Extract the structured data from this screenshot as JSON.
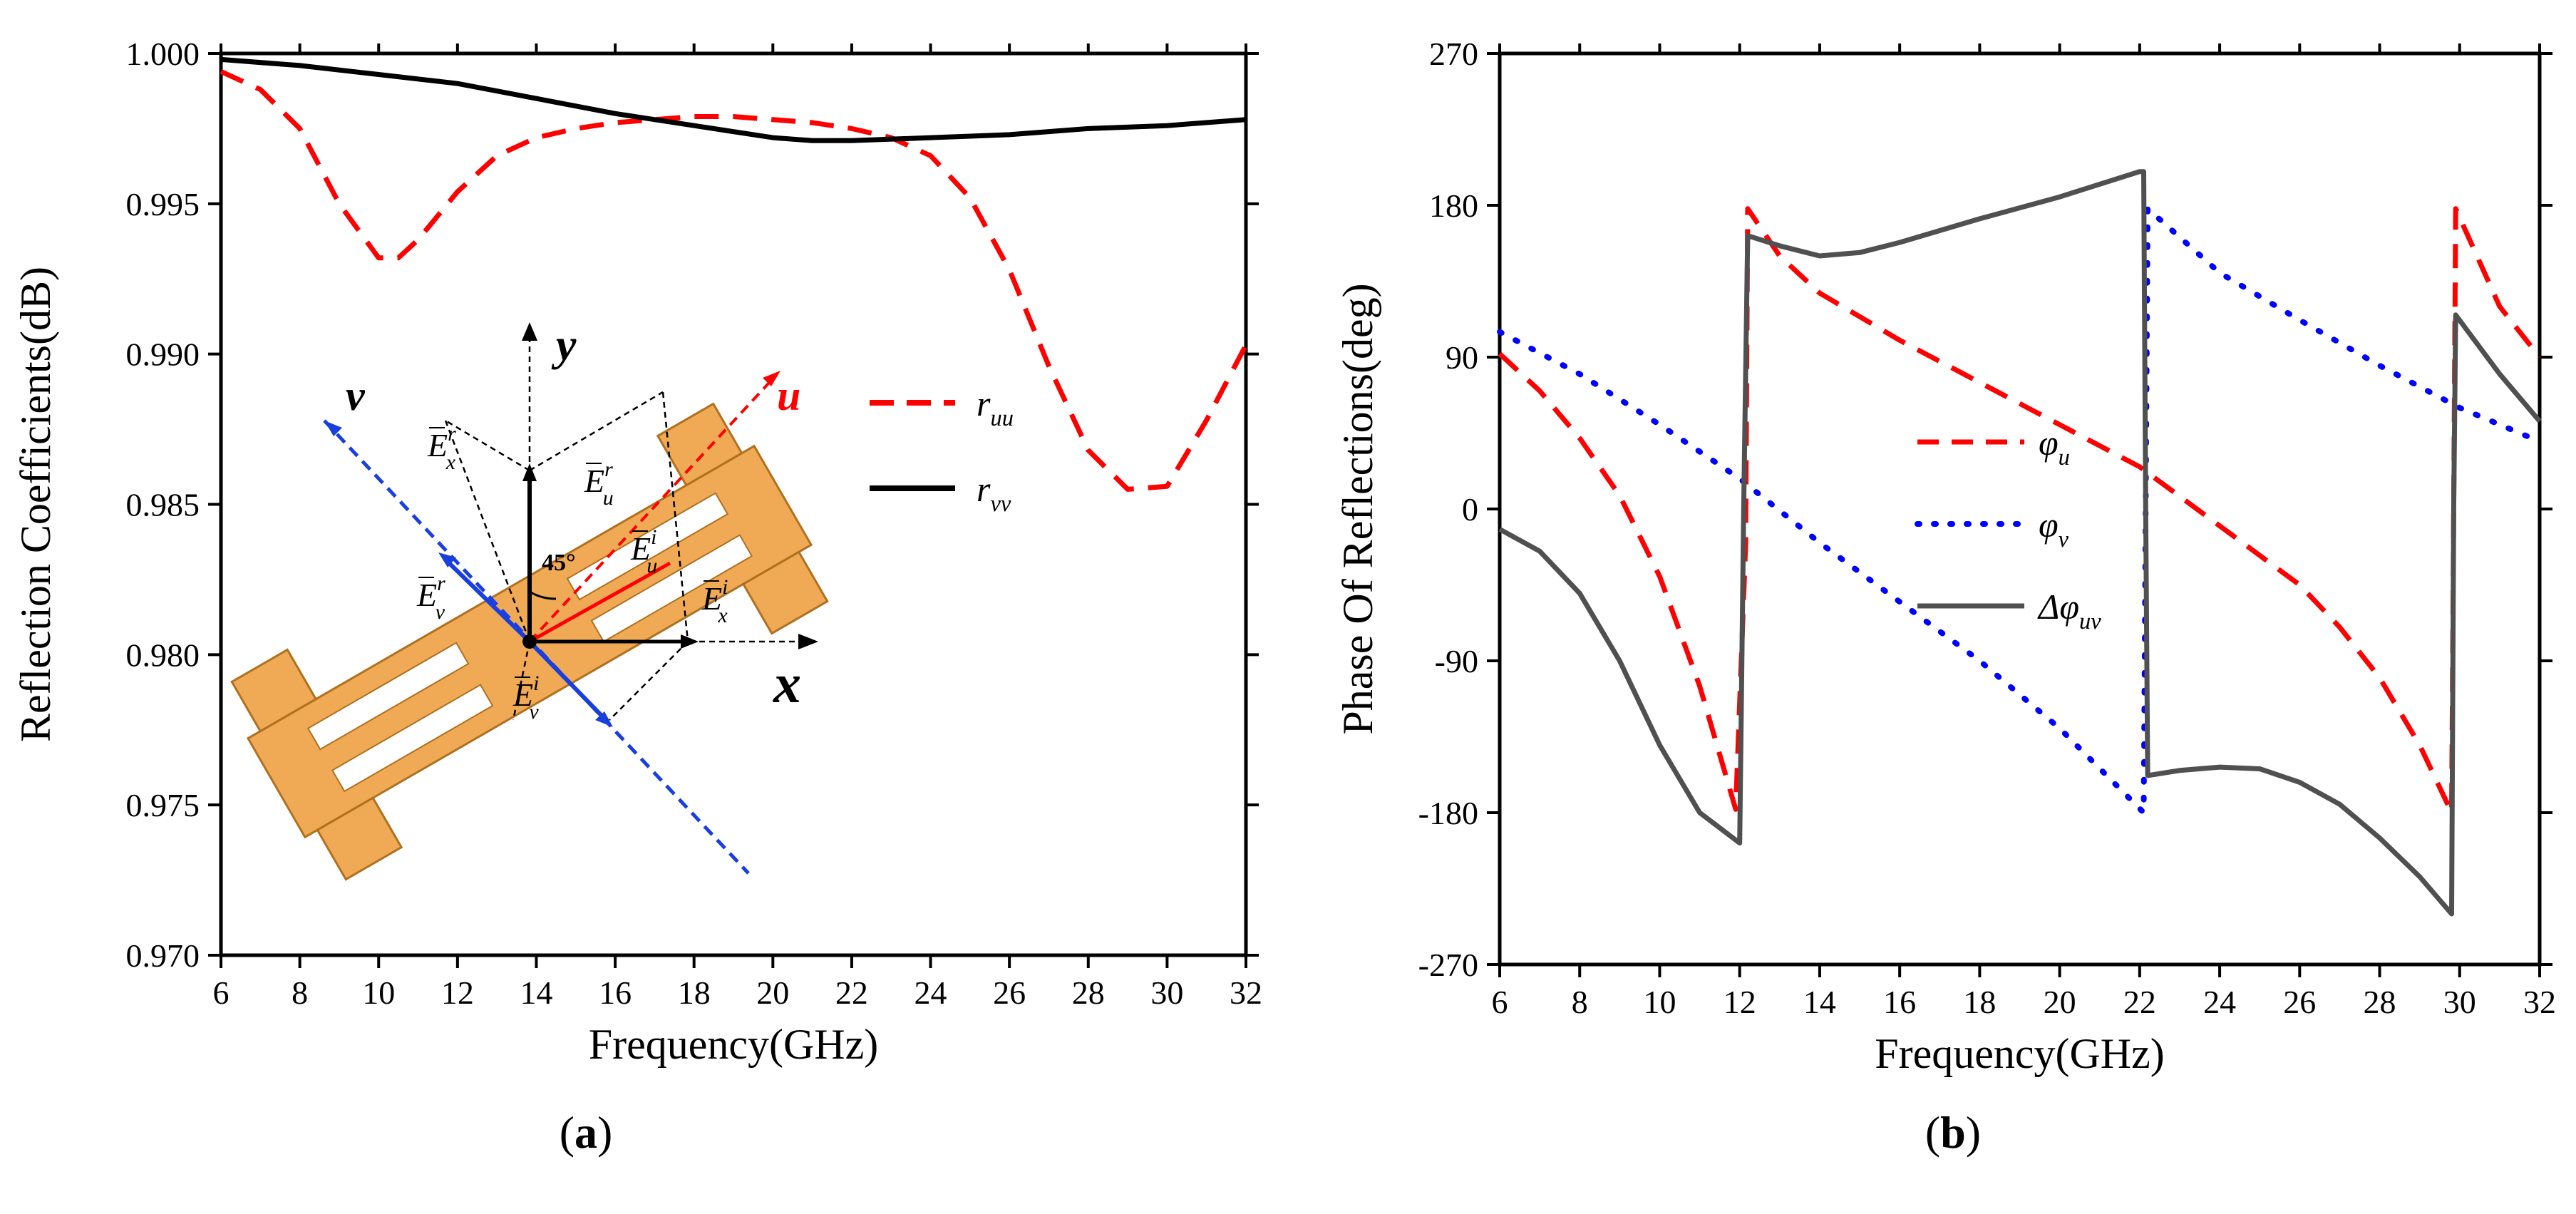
{
  "chart_data": [
    {
      "panel": "(a)",
      "type": "line",
      "ylabel": "Reflection Coefficients(dB)",
      "xlabel": "Frequency(GHz)",
      "xlim": [
        6,
        32
      ],
      "ylim": [
        0.97,
        1.0
      ],
      "xticks": [
        "6",
        "8",
        "10",
        "12",
        "14",
        "16",
        "18",
        "20",
        "22",
        "24",
        "26",
        "28",
        "30",
        "32"
      ],
      "yticks": [
        "0.970",
        "0.975",
        "0.980",
        "0.985",
        "0.990",
        "0.995",
        "1.000"
      ],
      "legend_position": "right",
      "series": [
        {
          "name": "r_uu",
          "name_main": "r",
          "name_sub": "uu",
          "color": "#ff0000",
          "style": "dashed",
          "points": [
            [
              6,
              0.9994
            ],
            [
              7,
              0.9988
            ],
            [
              8,
              0.9975
            ],
            [
              9,
              0.995
            ],
            [
              10,
              0.9932
            ],
            [
              10.5,
              0.9932
            ],
            [
              11,
              0.9938
            ],
            [
              12,
              0.9954
            ],
            [
              13,
              0.9966
            ],
            [
              14,
              0.9972
            ],
            [
              15,
              0.9975
            ],
            [
              16,
              0.9977
            ],
            [
              17,
              0.9978
            ],
            [
              18,
              0.9979
            ],
            [
              19,
              0.9979
            ],
            [
              20,
              0.9978
            ],
            [
              21,
              0.9977
            ],
            [
              22,
              0.9975
            ],
            [
              23,
              0.9972
            ],
            [
              24,
              0.9966
            ],
            [
              25,
              0.9952
            ],
            [
              26,
              0.9928
            ],
            [
              27,
              0.9896
            ],
            [
              28,
              0.9868
            ],
            [
              29,
              0.9855
            ],
            [
              30,
              0.9856
            ],
            [
              31,
              0.9878
            ],
            [
              32,
              0.9903
            ]
          ]
        },
        {
          "name": "r_vv",
          "name_main": "r",
          "name_sub": "vv",
          "color": "#000000",
          "style": "solid",
          "points": [
            [
              6,
              0.9998
            ],
            [
              8,
              0.9996
            ],
            [
              10,
              0.9993
            ],
            [
              12,
              0.999
            ],
            [
              14,
              0.9985
            ],
            [
              16,
              0.998
            ],
            [
              18,
              0.9976
            ],
            [
              20,
              0.9972
            ],
            [
              21,
              0.9971
            ],
            [
              22,
              0.9971
            ],
            [
              24,
              0.9972
            ],
            [
              26,
              0.9973
            ],
            [
              28,
              0.9975
            ],
            [
              30,
              0.9976
            ],
            [
              32,
              0.9978
            ]
          ]
        }
      ],
      "inset": {
        "labels": {
          "x": "x",
          "y": "y",
          "u": "u",
          "v": "v",
          "angle": "45°"
        },
        "field_labels": {
          "exr": {
            "main": "E",
            "sub": "x",
            "sup": "r"
          },
          "eur": {
            "main": "E",
            "sub": "u",
            "sup": "r"
          },
          "eui": {
            "main": "E",
            "sub": "u",
            "sup": "i"
          },
          "exi": {
            "main": "E",
            "sub": "x",
            "sup": "i"
          },
          "evr": {
            "main": "E",
            "sub": "v",
            "sup": "r"
          },
          "evi": {
            "main": "E",
            "sub": "v",
            "sup": "i"
          }
        },
        "colors": {
          "patch": "#f0aa55",
          "u_axis": "#ff0000",
          "v_axis": "#1a3fe0"
        }
      }
    },
    {
      "panel": "(b)",
      "type": "line",
      "ylabel": "Phase Of Reflections(deg)",
      "xlabel": "Frequency(GHz)",
      "xlim": [
        6,
        32
      ],
      "ylim": [
        -270,
        270
      ],
      "xticks": [
        "6",
        "8",
        "10",
        "12",
        "14",
        "16",
        "18",
        "20",
        "22",
        "24",
        "26",
        "28",
        "30",
        "32"
      ],
      "yticks": [
        "-270",
        "-180",
        "-90",
        "0",
        "90",
        "180",
        "270"
      ],
      "legend_position": "center",
      "series": [
        {
          "name": "φ_u",
          "name_main": "φ",
          "name_sub": "u",
          "color": "#ff0000",
          "style": "dashed",
          "points": [
            [
              6,
              92
            ],
            [
              7,
              70
            ],
            [
              8,
              42
            ],
            [
              9,
              8
            ],
            [
              10,
              -40
            ],
            [
              11,
              -105
            ],
            [
              11.9,
              -178
            ],
            [
              12.15,
              -20
            ],
            [
              12.2,
              178
            ],
            [
              13,
              150
            ],
            [
              14,
              128
            ],
            [
              16,
              100
            ],
            [
              18,
              75
            ],
            [
              20,
              50
            ],
            [
              22,
              25
            ],
            [
              24,
              -10
            ],
            [
              26,
              -45
            ],
            [
              27,
              -70
            ],
            [
              28,
              -100
            ],
            [
              29,
              -140
            ],
            [
              29.8,
              -180
            ],
            [
              29.85,
              0
            ],
            [
              29.9,
              178
            ],
            [
              31,
              120
            ],
            [
              32,
              90
            ]
          ]
        },
        {
          "name": "φ_v",
          "name_main": "φ",
          "name_sub": "v",
          "color": "#0000ff",
          "style": "dotted",
          "points": [
            [
              6,
              105
            ],
            [
              8,
              80
            ],
            [
              10,
              50
            ],
            [
              12,
              18
            ],
            [
              14,
              -20
            ],
            [
              16,
              -55
            ],
            [
              18,
              -90
            ],
            [
              20,
              -130
            ],
            [
              22.1,
              -180
            ],
            [
              22.15,
              0
            ],
            [
              22.2,
              178
            ],
            [
              24,
              140
            ],
            [
              26,
              112
            ],
            [
              28,
              85
            ],
            [
              30,
              60
            ],
            [
              32,
              40
            ]
          ]
        },
        {
          "name": "Δφ_uv",
          "name_main": "Δφ",
          "name_sub": "uv",
          "color": "#505050",
          "style": "solid",
          "points": [
            [
              6,
              -12
            ],
            [
              7,
              -25
            ],
            [
              8,
              -50
            ],
            [
              9,
              -90
            ],
            [
              10,
              -140
            ],
            [
              11,
              -180
            ],
            [
              12,
              -198
            ],
            [
              12.1,
              0
            ],
            [
              12.2,
              162
            ],
            [
              13,
              156
            ],
            [
              14,
              150
            ],
            [
              15,
              152
            ],
            [
              16,
              158
            ],
            [
              18,
              172
            ],
            [
              20,
              185
            ],
            [
              22,
              200
            ],
            [
              22.1,
              200
            ],
            [
              22.15,
              0
            ],
            [
              22.2,
              -158
            ],
            [
              23,
              -155
            ],
            [
              24,
              -153
            ],
            [
              25,
              -154
            ],
            [
              26,
              -162
            ],
            [
              27,
              -175
            ],
            [
              28,
              -195
            ],
            [
              29,
              -218
            ],
            [
              29.8,
              -240
            ],
            [
              29.85,
              0
            ],
            [
              29.9,
              115
            ],
            [
              31,
              80
            ],
            [
              32,
              52
            ]
          ]
        }
      ]
    }
  ]
}
